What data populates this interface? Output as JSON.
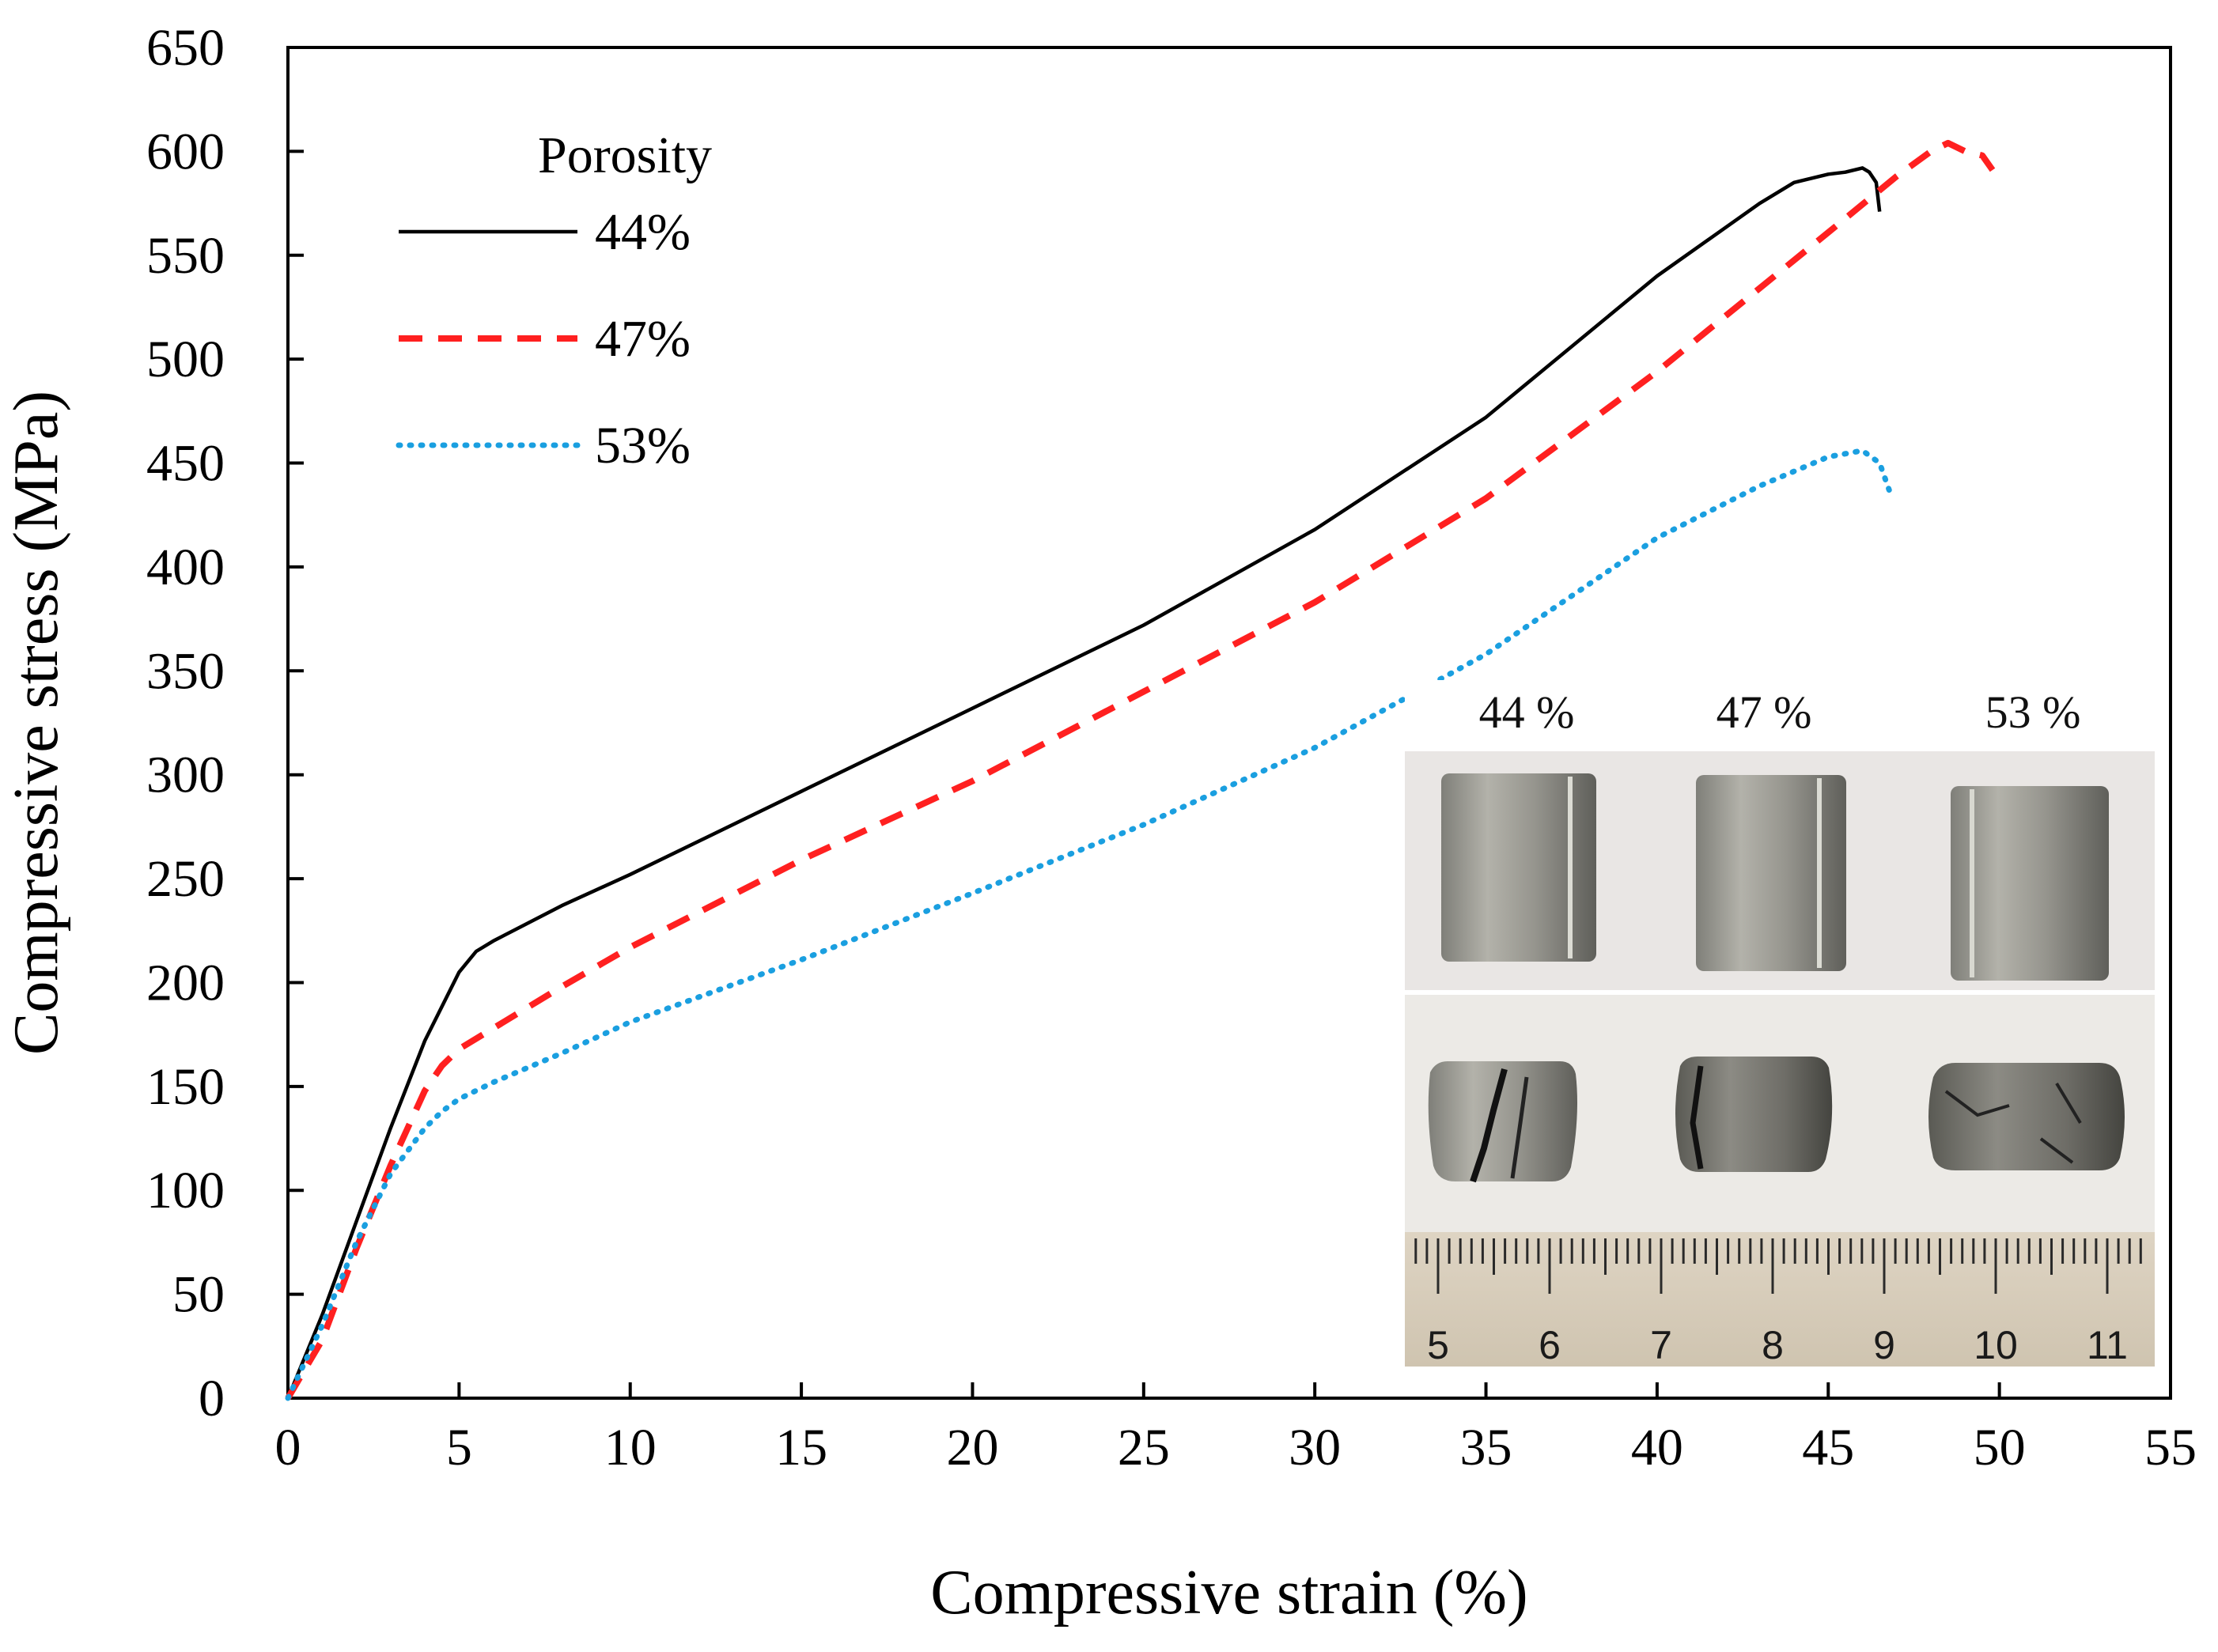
{
  "chart_data": {
    "type": "line",
    "xlabel": "Compressive strain (%)",
    "ylabel": "Compressive stress (MPa)",
    "xlim": [
      0,
      55
    ],
    "ylim": [
      0,
      650
    ],
    "x_ticks": [
      0,
      5,
      10,
      15,
      20,
      25,
      30,
      35,
      40,
      45,
      50,
      55
    ],
    "y_ticks": [
      0,
      50,
      100,
      150,
      200,
      250,
      300,
      350,
      400,
      450,
      500,
      550,
      600,
      650
    ],
    "legend_title": "Porosity",
    "legend_position": "top-left",
    "series": [
      {
        "name": "44%",
        "color": "#000000",
        "style": "solid",
        "x": [
          0,
          1,
          2,
          3,
          4,
          5,
          5.5,
          6,
          8,
          10,
          15,
          20,
          25,
          30,
          35,
          40,
          43,
          44,
          45,
          45.5,
          46,
          46.2,
          46.4,
          46.5
        ],
        "y": [
          0,
          40,
          85,
          130,
          172,
          205,
          215,
          220,
          237,
          252,
          292,
          332,
          372,
          418,
          472,
          540,
          575,
          585,
          589,
          590,
          592,
          590,
          585,
          571
        ]
      },
      {
        "name": "47%",
        "color": "#ff2020",
        "style": "dashed",
        "x": [
          0,
          1,
          2,
          3,
          4,
          4.5,
          5,
          6,
          8,
          10,
          15,
          20,
          25,
          30,
          35,
          40,
          45,
          47,
          48,
          48.5,
          49,
          49.5,
          49.8
        ],
        "y": [
          0,
          28,
          72,
          112,
          148,
          160,
          168,
          178,
          198,
          217,
          259,
          297,
          340,
          383,
          433,
          494,
          561,
          588,
          600,
          604,
          600,
          598,
          591
        ]
      },
      {
        "name": "53%",
        "color": "#1a9fe0",
        "style": "dotted",
        "x": [
          0,
          1,
          2,
          3,
          4,
          4.5,
          5,
          6,
          8,
          10,
          15,
          20,
          25,
          30,
          35,
          40,
          43,
          45,
          46,
          46.5,
          46.8
        ],
        "y": [
          0,
          35,
          75,
          108,
          130,
          138,
          144,
          152,
          166,
          181,
          211,
          243,
          276,
          313,
          358,
          414,
          439,
          453,
          456,
          450,
          436
        ]
      }
    ],
    "inset": {
      "sample_labels": [
        "44 %",
        "47 %",
        "53 %"
      ],
      "ruler_labels": [
        "5",
        "6",
        "7",
        "8",
        "9",
        "10",
        "11"
      ]
    }
  }
}
